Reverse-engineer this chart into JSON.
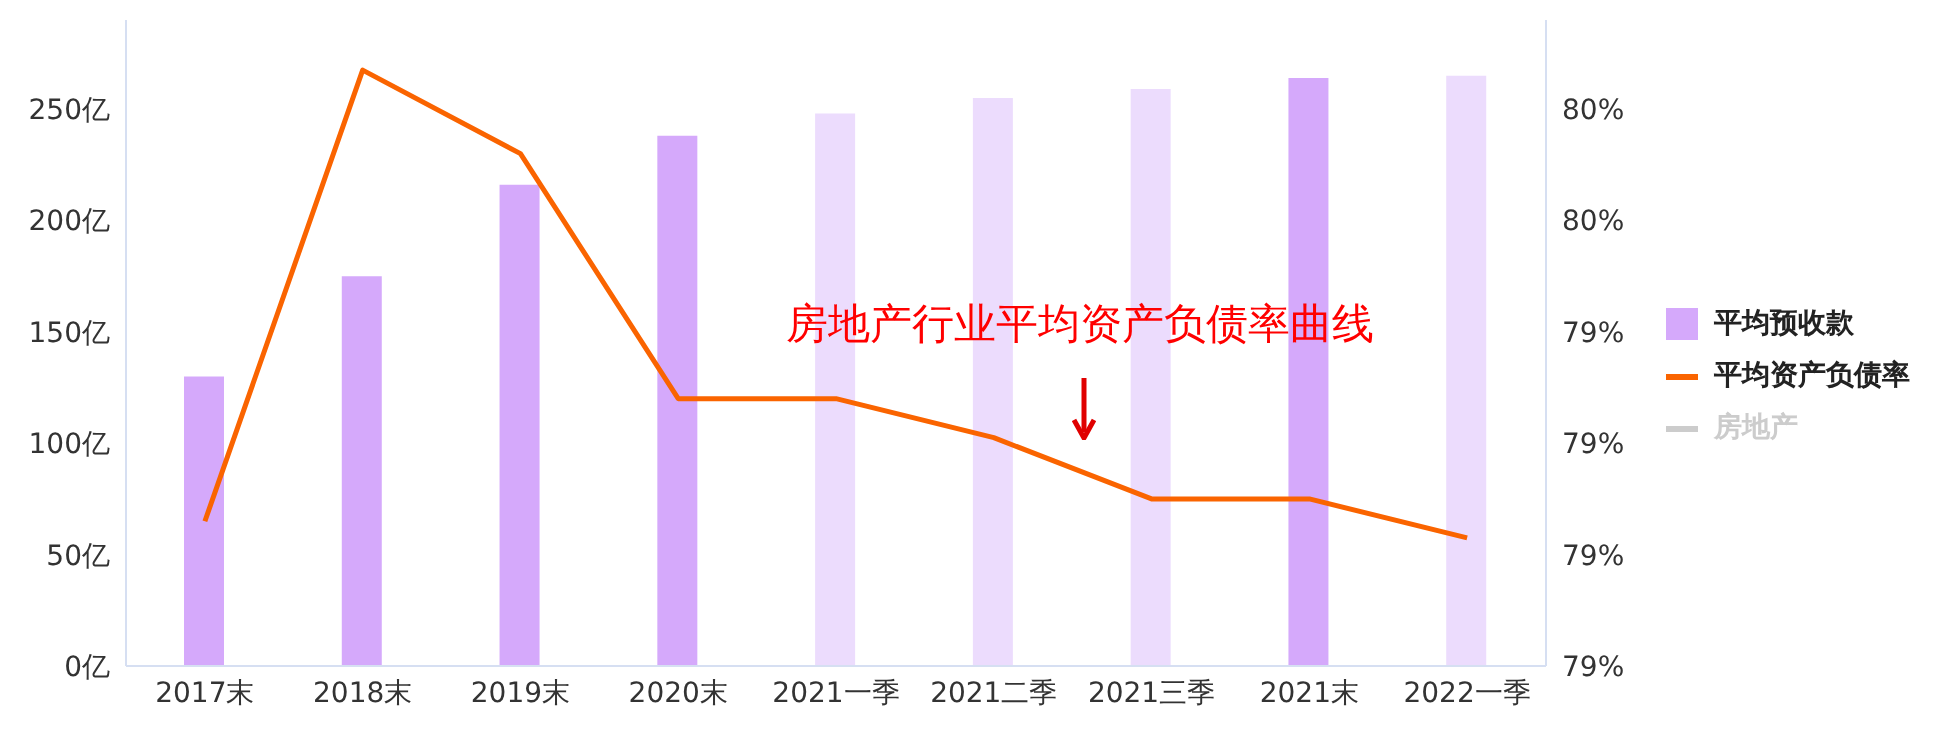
{
  "chart_data": {
    "type": "bar",
    "categories": [
      "2017末",
      "2018末",
      "2019末",
      "2020末",
      "2021一季",
      "2021二季",
      "2021三季",
      "2021末",
      "2022一季"
    ],
    "series": [
      {
        "name": "平均预收款",
        "color": "#d5a9fb",
        "colors": [
          "#d5a9fb",
          "#d5a9fb",
          "#d5a9fb",
          "#d5a9fb",
          "#ecdcfd",
          "#ecdcfd",
          "#ecdcfd",
          "#d5a9fb",
          "#ecdcfd"
        ],
        "values": [
          130,
          175,
          216,
          238,
          248,
          255,
          259,
          264,
          265
        ]
      },
      {
        "name": "平均资产负债率",
        "type": "line",
        "axis": "y2",
        "color": "#fa6400",
        "values": [
          79.06,
          79.87,
          79.72,
          79.28,
          79.28,
          79.21,
          79.1,
          79.1,
          79.03
        ]
      },
      {
        "name": "房地产",
        "type": "line",
        "color": "#cccccc",
        "values": [
          null,
          null,
          null,
          null,
          null,
          null,
          null,
          null,
          null
        ]
      }
    ],
    "ylim": [
      0,
      290
    ],
    "yticks": [
      {
        "value": 0,
        "label": "0亿"
      },
      {
        "value": 50,
        "label": "50亿"
      },
      {
        "value": 100,
        "label": "100亿"
      },
      {
        "value": 150,
        "label": "150亿"
      },
      {
        "value": 200,
        "label": "200亿"
      },
      {
        "value": 250,
        "label": "250亿"
      }
    ],
    "y2lim": [
      78.8,
      79.96
    ],
    "y2ticks": [
      {
        "value": 78.8,
        "label": "79%"
      },
      {
        "value": 79,
        "label": "79%"
      },
      {
        "value": 79.2,
        "label": "79%"
      },
      {
        "value": 79.4,
        "label": "79%"
      },
      {
        "value": 79.6,
        "label": "80%"
      },
      {
        "value": 79.8,
        "label": "80%"
      }
    ],
    "grid": false,
    "legend": "right",
    "annotations": [
      "房地产行业平均资产负债率曲线"
    ]
  }
}
